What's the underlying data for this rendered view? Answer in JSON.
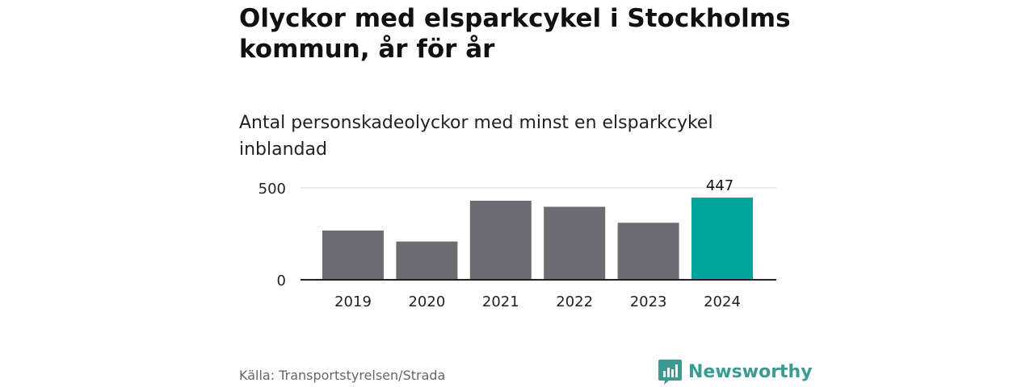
{
  "header": {
    "title": "Olyckor med elsparkcykel i Stockholms kommun, år för år",
    "subtitle": "Antal personskadeolyckor med minst en elsparkcykel inblandad"
  },
  "footer": {
    "source": "Källa: Transportstyrelsen/Strada",
    "brand": "Newsworthy",
    "brand_icon": "bar-chart-speech-bubble-icon"
  },
  "colors": {
    "bar": "#6d6c72",
    "highlight": "#00a69a",
    "brand": "#3a9b93"
  },
  "chart_data": {
    "type": "bar",
    "categories": [
      "2019",
      "2020",
      "2021",
      "2022",
      "2023",
      "2024"
    ],
    "values": [
      268,
      208,
      430,
      397,
      310,
      447
    ],
    "highlight_index": 5,
    "data_labels": [
      {
        "index": 5,
        "text": "447"
      }
    ],
    "title": "Olyckor med elsparkcykel i Stockholms kommun, år för år",
    "subtitle": "Antal personskadeolyckor med minst en elsparkcykel inblandad",
    "xlabel": "",
    "ylabel": "",
    "ylim": [
      0,
      500
    ],
    "yticks": [
      0,
      500
    ],
    "grid": true,
    "legend": "none"
  }
}
